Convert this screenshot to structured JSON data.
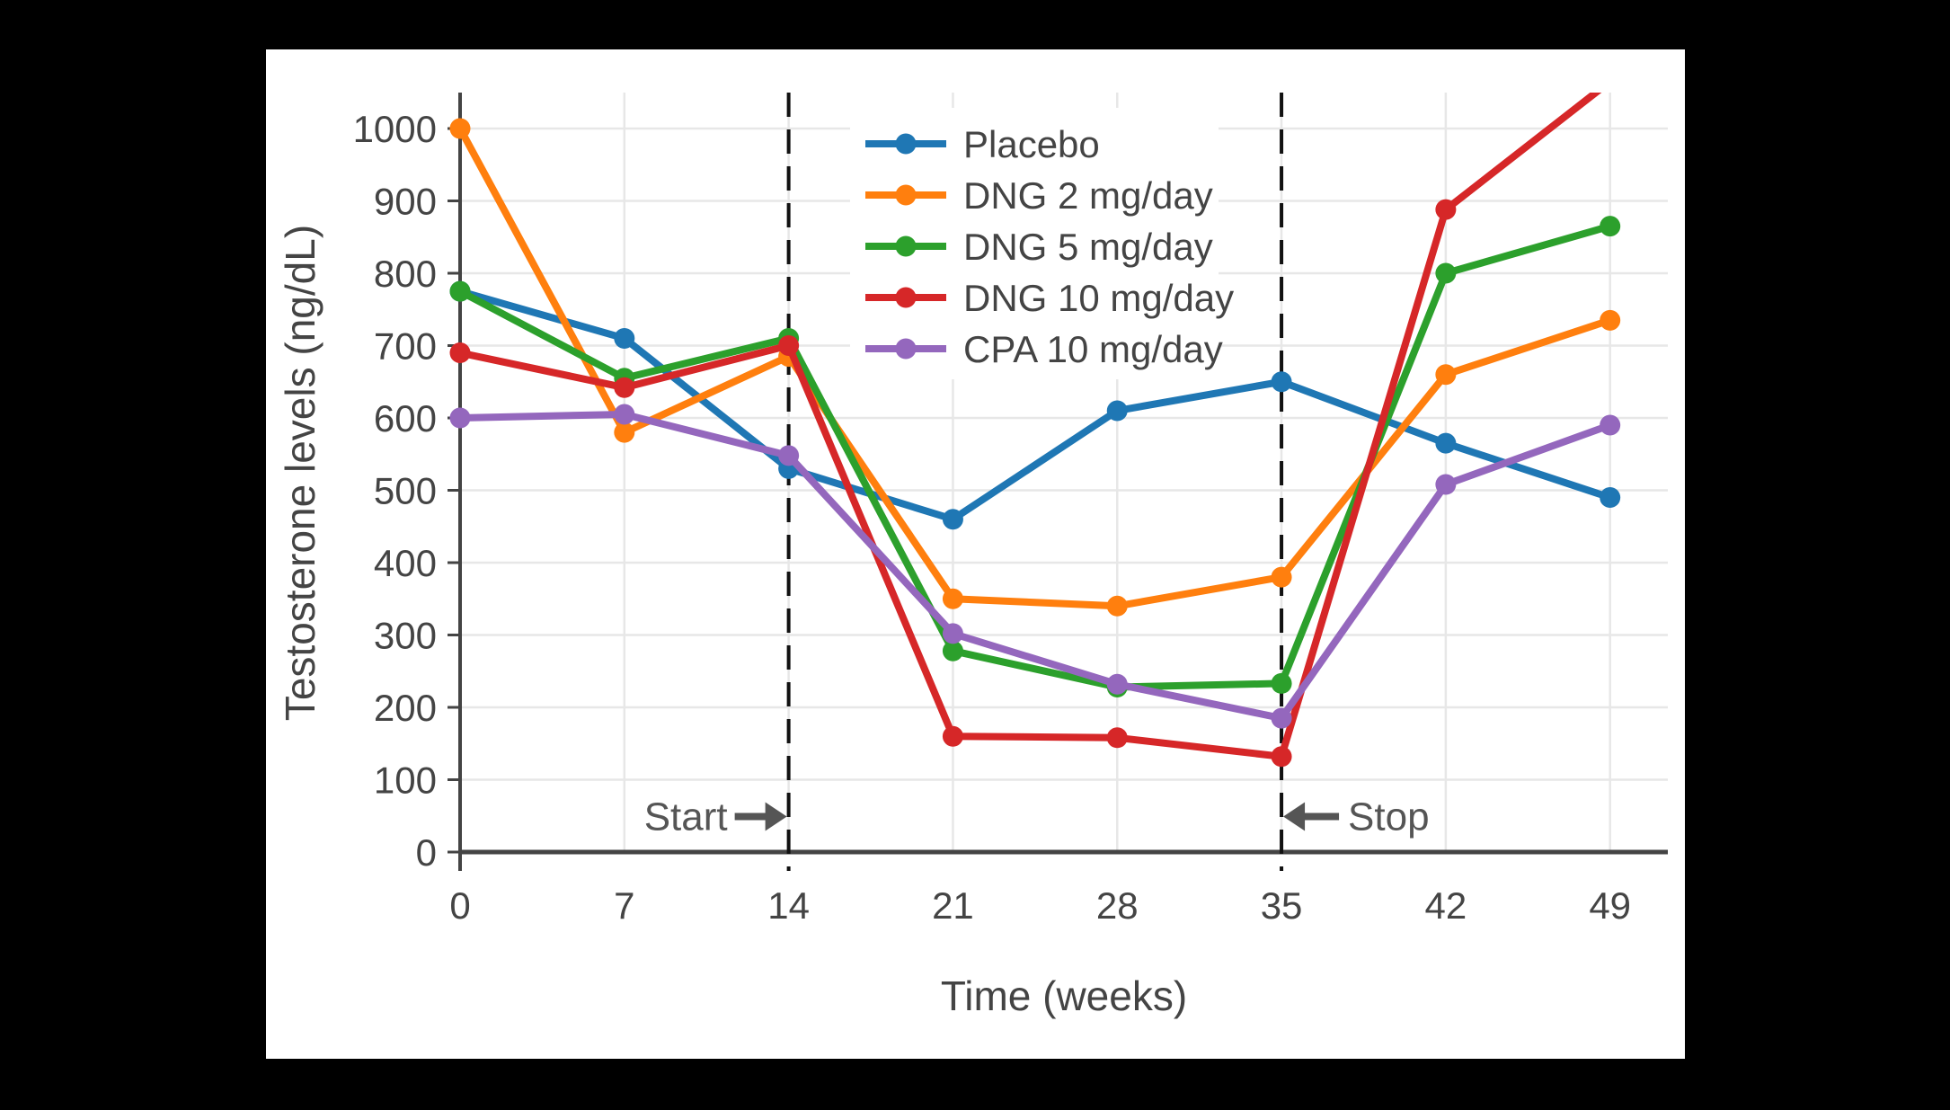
{
  "figure": {
    "background_color": "#000000",
    "panel_color": "#ffffff"
  },
  "chart_data": {
    "type": "line",
    "title": "",
    "xlabel": "Time (weeks)",
    "ylabel": "Testosterone levels (ng/dL)",
    "x": [
      0,
      7,
      14,
      21,
      28,
      35,
      42,
      49
    ],
    "xticks": [
      0,
      7,
      14,
      21,
      28,
      35,
      42,
      49
    ],
    "yticks": [
      0,
      100,
      200,
      300,
      400,
      500,
      600,
      700,
      800,
      900,
      1000
    ],
    "xlim": [
      0,
      51.5
    ],
    "ylim": [
      0,
      1050
    ],
    "grid": true,
    "legend_position": "inside upper-middle",
    "series": [
      {
        "name": "Placebo",
        "color": "#1f77b4",
        "values": [
          775,
          710,
          530,
          460,
          610,
          650,
          565,
          490
        ]
      },
      {
        "name": "DNG 2 mg/day",
        "color": "#ff7f0e",
        "values": [
          1000,
          580,
          685,
          350,
          340,
          380,
          660,
          735
        ]
      },
      {
        "name": "DNG 5 mg/day",
        "color": "#2ca02c",
        "values": [
          775,
          655,
          710,
          278,
          228,
          233,
          800,
          865
        ]
      },
      {
        "name": "DNG 10 mg/day",
        "color": "#d62728",
        "values": [
          690,
          642,
          700,
          160,
          158,
          132,
          888,
          1065
        ],
        "note": "week-49 point is off-scale; line is clipped at the top of the plot (~1065 estimated)"
      },
      {
        "name": "CPA 10 mg/day",
        "color": "#9467bd",
        "values": [
          600,
          605,
          548,
          302,
          232,
          185,
          508,
          590
        ]
      }
    ],
    "annotations": [
      {
        "label": "Start",
        "week": 14,
        "y": 49,
        "arrow": "right",
        "line_style": "dashed-vertical"
      },
      {
        "label": "Stop",
        "week": 35,
        "y": 49,
        "arrow": "left",
        "line_style": "dashed-vertical"
      }
    ],
    "styles": {
      "grid_color": "#e7e7e7",
      "axis_color": "#444444",
      "tick_text_color": "#444444",
      "annotation_color": "#555555",
      "dashed_line_color": "#111111",
      "legend_background": "#ffffff"
    }
  }
}
